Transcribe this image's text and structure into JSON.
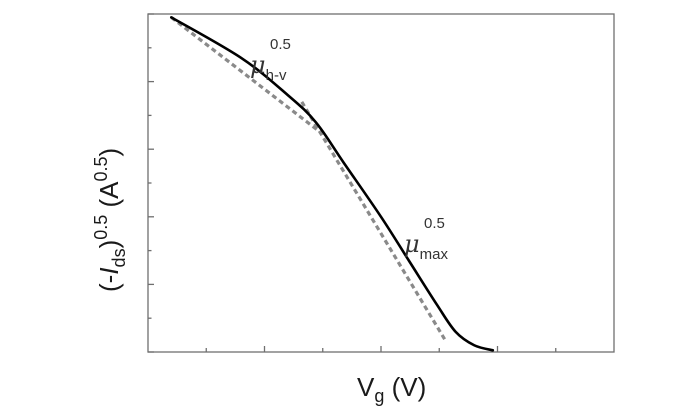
{
  "chart_data": {
    "type": "line",
    "title": "",
    "xlabel": {
      "main": "V",
      "sub": "g",
      "unit": " (V)"
    },
    "ylabel": {
      "open": "(-",
      "var": "I",
      "sub": "ds",
      "close": ")",
      "sup": "0.5",
      "unit_open": " (A",
      "unit_sup": "0.5",
      "unit_close": ")"
    },
    "xlim": [
      0,
      1
    ],
    "ylim": [
      0,
      1
    ],
    "x_ticks_shown_without_labels": true,
    "y_ticks_shown_without_labels": true,
    "grid": false,
    "series": [
      {
        "style": "solid",
        "color": "#000000",
        "points": [
          [
            0.05,
            0.99
          ],
          [
            0.2,
            0.87
          ],
          [
            0.3,
            0.76
          ],
          [
            0.36,
            0.68
          ],
          [
            0.42,
            0.56
          ],
          [
            0.5,
            0.4
          ],
          [
            0.56,
            0.27
          ],
          [
            0.62,
            0.14
          ],
          [
            0.66,
            0.06
          ],
          [
            0.7,
            0.02
          ],
          [
            0.74,
            0.005
          ]
        ]
      },
      {
        "style": "dashed",
        "color": "#8a8a8a",
        "points": [
          [
            0.05,
            0.99
          ],
          [
            0.37,
            0.65
          ]
        ]
      },
      {
        "style": "dashed",
        "color": "#8a8a8a",
        "points": [
          [
            0.33,
            0.74
          ],
          [
            0.64,
            0.03
          ]
        ]
      }
    ],
    "annotations": [
      {
        "symbol": "μ",
        "sub": "h-v",
        "sup": "0.5",
        "x": 0.31,
        "y": 0.88
      },
      {
        "symbol": "μ",
        "sub": "max",
        "sup": "0.5",
        "x": 0.73,
        "y": 0.3
      }
    ]
  }
}
